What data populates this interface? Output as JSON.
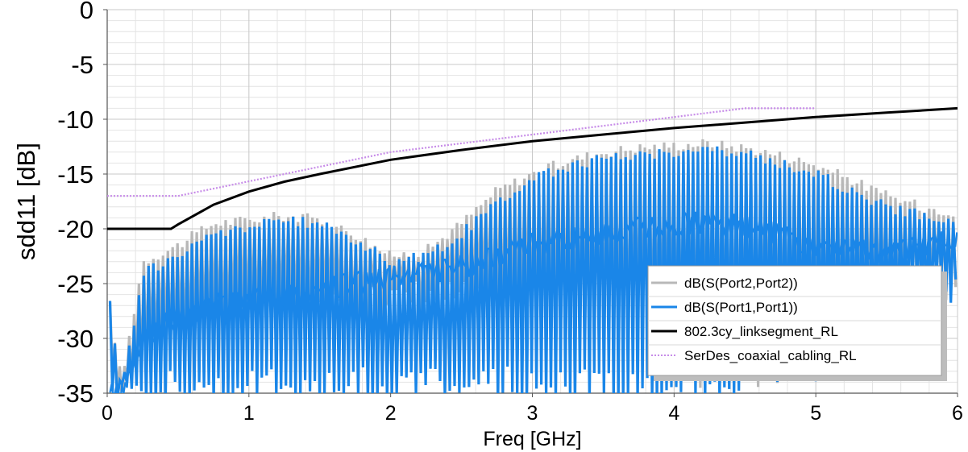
{
  "chart_data": {
    "type": "line",
    "title": "",
    "xlabel": "Freq [GHz]",
    "ylabel": "sdd11 [dB]",
    "xlim": [
      0,
      6
    ],
    "ylim": [
      -35,
      0
    ],
    "x_ticks": [
      "0",
      "1",
      "2",
      "3",
      "4",
      "5",
      "6"
    ],
    "y_ticks": [
      "0",
      "-5",
      "-10",
      "-15",
      "-20",
      "-25",
      "-30",
      "-35"
    ],
    "grid": true,
    "legend_placement": "bottom-right",
    "series": [
      {
        "name": "dB(S(Port2,Port2))",
        "color": "#b8b8b8",
        "style": "oscillating",
        "x": [
          0.02,
          0.1,
          0.25,
          0.5,
          0.75,
          1.0,
          1.25,
          1.5,
          1.75,
          2.0,
          2.25,
          2.5,
          2.75,
          3.0,
          3.25,
          3.5,
          3.75,
          4.0,
          4.2,
          4.5,
          4.75,
          5.0,
          5.25,
          5.5,
          5.75,
          6.0
        ],
        "upper": [
          -27,
          -34,
          -23,
          -21.5,
          -19.5,
          -19.2,
          -18.8,
          -19.2,
          -20.5,
          -22.5,
          -22.0,
          -19.5,
          -16.5,
          -15.0,
          -13.8,
          -13.0,
          -12.6,
          -12.4,
          -12.2,
          -12.6,
          -13.3,
          -14.2,
          -15.5,
          -17.0,
          -18.0,
          -18.5
        ],
        "lower": [
          -35,
          -35,
          -32,
          -30,
          -29,
          -29,
          -28.5,
          -28.5,
          -28,
          -27,
          -26.5,
          -27,
          -28,
          -29,
          -30,
          -31,
          -32,
          -33,
          -34,
          -34,
          -33,
          -31,
          -30,
          -28,
          -27,
          -25
        ]
      },
      {
        "name": "dB(S(Port1,Port1))",
        "color": "#1a86e8",
        "style": "oscillating",
        "x": [
          0.02,
          0.1,
          0.25,
          0.5,
          0.75,
          1.0,
          1.25,
          1.5,
          1.75,
          2.0,
          2.25,
          2.5,
          2.75,
          3.0,
          3.25,
          3.5,
          3.75,
          4.0,
          4.2,
          4.5,
          4.75,
          5.0,
          5.25,
          5.5,
          5.75,
          6.0
        ],
        "upper": [
          -27,
          -35,
          -24,
          -22.5,
          -20.5,
          -19.8,
          -19.2,
          -19.6,
          -21.0,
          -23.0,
          -22.5,
          -20.5,
          -17.5,
          -15.5,
          -14.3,
          -13.6,
          -13.2,
          -13.0,
          -12.8,
          -13.2,
          -14.0,
          -15.0,
          -16.5,
          -18.0,
          -18.8,
          -19.2
        ],
        "lower": [
          -35,
          -35,
          -35,
          -35,
          -35,
          -35,
          -35,
          -35,
          -35,
          -35,
          -35,
          -35,
          -35,
          -35,
          -35,
          -35,
          -35,
          -35,
          -35,
          -35,
          -34,
          -33,
          -31,
          -29,
          -27,
          -25.5
        ],
        "center": [
          -35,
          -35,
          -30,
          -28,
          -27,
          -26.5,
          -26,
          -25.5,
          -25,
          -24.5,
          -24,
          -23.5,
          -22.5,
          -21.5,
          -21,
          -20.5,
          -20,
          -19.5,
          -19.5,
          -19.8,
          -20.5,
          -21.5,
          -22,
          -22,
          -21.5,
          -21
        ]
      },
      {
        "name": "802.3cy_linksegment_RL",
        "color": "#000000",
        "style": "solid",
        "x": [
          0,
          0.45,
          0.5,
          0.75,
          1.0,
          1.25,
          1.5,
          2.0,
          2.5,
          3.0,
          3.5,
          4.0,
          4.5,
          5.0,
          5.5,
          6.0
        ],
        "y": [
          -20,
          -20,
          -19.6,
          -17.8,
          -16.6,
          -15.7,
          -15.0,
          -13.7,
          -12.8,
          -12.0,
          -11.4,
          -10.8,
          -10.3,
          -9.8,
          -9.4,
          -9.0
        ]
      },
      {
        "name": "SerDes_coaxial_cabling_RL",
        "color": "#c78ce8",
        "style": "dotted",
        "x": [
          0,
          0.5,
          2.0,
          4.5,
          5.0
        ],
        "y": [
          -17,
          -17,
          -13,
          -9,
          -9
        ]
      }
    ]
  },
  "legend": {
    "items": [
      {
        "label": "dB(S(Port2,Port2))",
        "color": "#b8b8b8",
        "style": "solid"
      },
      {
        "label": "dB(S(Port1,Port1))",
        "color": "#1a86e8",
        "style": "solid"
      },
      {
        "label": "802.3cy_linksegment_RL",
        "color": "#000000",
        "style": "solid"
      },
      {
        "label": "SerDes_coaxial_cabling_RL",
        "color": "#c78ce8",
        "style": "dotted"
      }
    ]
  }
}
